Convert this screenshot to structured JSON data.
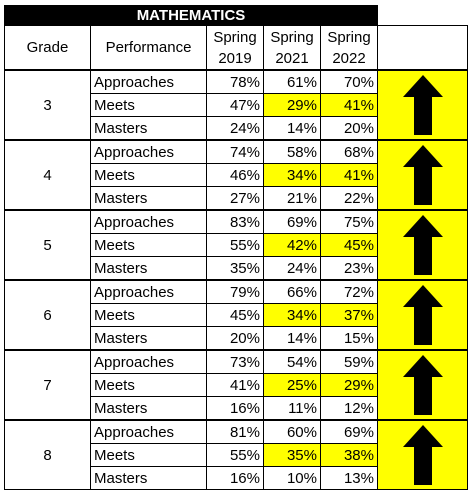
{
  "title": "MATHEMATICS",
  "headers": {
    "grade": "Grade",
    "performance": "Performance",
    "col1_line1": "Spring",
    "col1_line2": "2019",
    "col2_line1": "Spring",
    "col2_line2": "2021",
    "col3_line1": "Spring",
    "col3_line2": "2022"
  },
  "colors": {
    "highlight": "#ffff00",
    "title_bg": "#000000",
    "arrow": "#000000"
  },
  "arrow_icon": "up-arrow-icon",
  "grades": [
    {
      "grade": "3",
      "rows": [
        {
          "label": "Approaches",
          "v2019": "78%",
          "v2021": "61%",
          "v2022": "70%",
          "highlight": false
        },
        {
          "label": "Meets",
          "v2019": "47%",
          "v2021": "29%",
          "v2022": "41%",
          "highlight": true
        },
        {
          "label": "Masters",
          "v2019": "24%",
          "v2021": "14%",
          "v2022": "20%",
          "highlight": false
        }
      ]
    },
    {
      "grade": "4",
      "rows": [
        {
          "label": "Approaches",
          "v2019": "74%",
          "v2021": "58%",
          "v2022": "68%",
          "highlight": false
        },
        {
          "label": "Meets",
          "v2019": "46%",
          "v2021": "34%",
          "v2022": "41%",
          "highlight": true
        },
        {
          "label": "Masters",
          "v2019": "27%",
          "v2021": "21%",
          "v2022": "22%",
          "highlight": false
        }
      ]
    },
    {
      "grade": "5",
      "rows": [
        {
          "label": "Approaches",
          "v2019": "83%",
          "v2021": "69%",
          "v2022": "75%",
          "highlight": false
        },
        {
          "label": "Meets",
          "v2019": "55%",
          "v2021": "42%",
          "v2022": "45%",
          "highlight": true
        },
        {
          "label": "Masters",
          "v2019": "35%",
          "v2021": "24%",
          "v2022": "23%",
          "highlight": false
        }
      ]
    },
    {
      "grade": "6",
      "rows": [
        {
          "label": "Approaches",
          "v2019": "79%",
          "v2021": "66%",
          "v2022": "72%",
          "highlight": false
        },
        {
          "label": "Meets",
          "v2019": "45%",
          "v2021": "34%",
          "v2022": "37%",
          "highlight": true
        },
        {
          "label": "Masters",
          "v2019": "20%",
          "v2021": "14%",
          "v2022": "15%",
          "highlight": false
        }
      ]
    },
    {
      "grade": "7",
      "rows": [
        {
          "label": "Approaches",
          "v2019": "73%",
          "v2021": "54%",
          "v2022": "59%",
          "highlight": false
        },
        {
          "label": "Meets",
          "v2019": "41%",
          "v2021": "25%",
          "v2022": "29%",
          "highlight": true
        },
        {
          "label": "Masters",
          "v2019": "16%",
          "v2021": "11%",
          "v2022": "12%",
          "highlight": false
        }
      ]
    },
    {
      "grade": "8",
      "rows": [
        {
          "label": "Approaches",
          "v2019": "81%",
          "v2021": "60%",
          "v2022": "69%",
          "highlight": false
        },
        {
          "label": "Meets",
          "v2019": "55%",
          "v2021": "35%",
          "v2022": "38%",
          "highlight": true
        },
        {
          "label": "Masters",
          "v2019": "16%",
          "v2021": "10%",
          "v2022": "13%",
          "highlight": false
        }
      ]
    }
  ]
}
